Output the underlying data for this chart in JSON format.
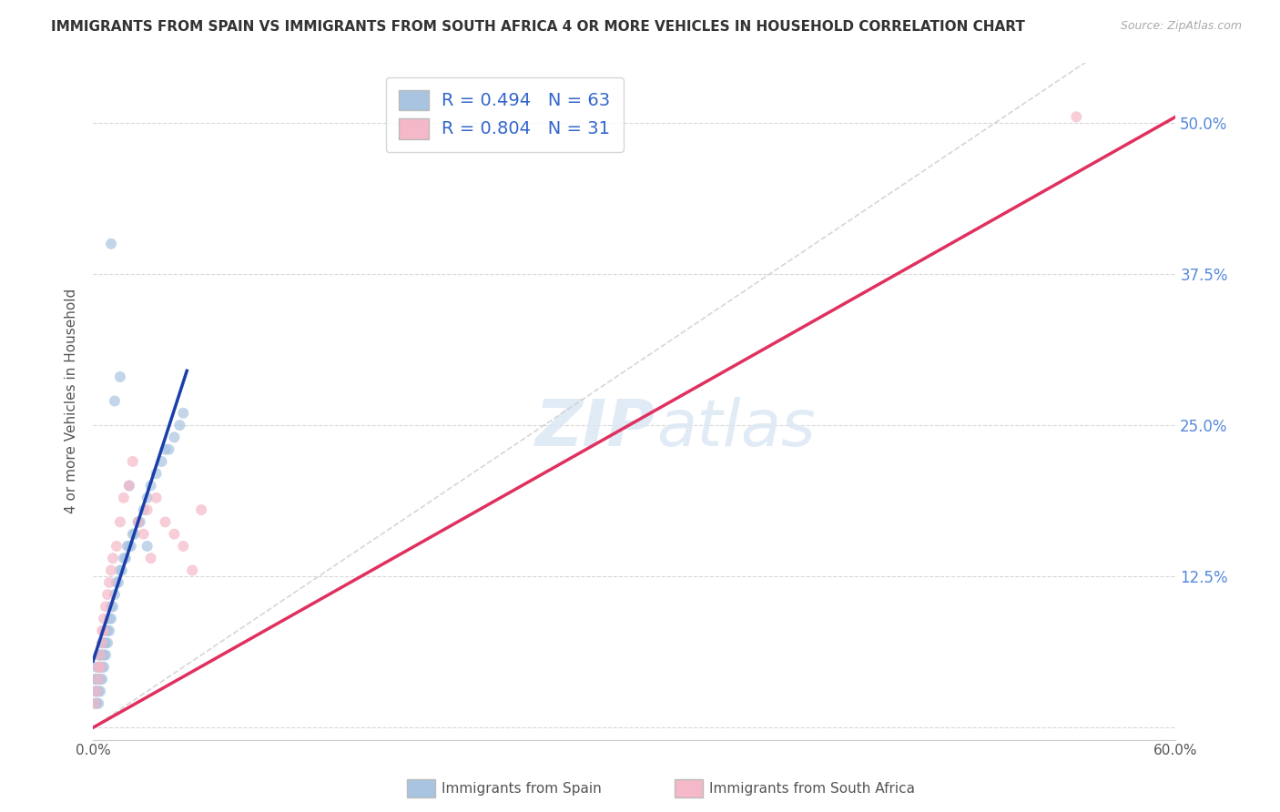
{
  "title": "IMMIGRANTS FROM SPAIN VS IMMIGRANTS FROM SOUTH AFRICA 4 OR MORE VEHICLES IN HOUSEHOLD CORRELATION CHART",
  "source": "Source: ZipAtlas.com",
  "ylabel": "4 or more Vehicles in Household",
  "legend_label1": "Immigrants from Spain",
  "legend_label2": "Immigrants from South Africa",
  "R1": 0.494,
  "N1": 63,
  "R2": 0.804,
  "N2": 31,
  "xlim": [
    0.0,
    0.6
  ],
  "ylim": [
    -0.01,
    0.55
  ],
  "xtick_vals": [
    0.0,
    0.1,
    0.2,
    0.3,
    0.4,
    0.5,
    0.6
  ],
  "xtick_labels": [
    "0.0%",
    "",
    "",
    "",
    "",
    "",
    "60.0%"
  ],
  "ytick_vals": [
    0.0,
    0.125,
    0.25,
    0.375,
    0.5
  ],
  "ytick_labels_right": [
    "",
    "12.5%",
    "25.0%",
    "37.5%",
    "50.0%"
  ],
  "color_spain": "#a8c4e0",
  "color_south_africa": "#f4b8c8",
  "line_color_spain": "#1a3faa",
  "line_color_south_africa": "#e03060",
  "diagonal_color": "#cccccc",
  "watermark_zip": "ZIP",
  "watermark_atlas": "atlas",
  "background_color": "#ffffff",
  "grid_color": "#d8d8d8",
  "scatter_size": 75,
  "scatter_alpha": 0.7,
  "spain_x": [
    0.001,
    0.001,
    0.001,
    0.002,
    0.002,
    0.002,
    0.002,
    0.003,
    0.003,
    0.003,
    0.003,
    0.003,
    0.004,
    0.004,
    0.004,
    0.004,
    0.005,
    0.005,
    0.005,
    0.005,
    0.006,
    0.006,
    0.006,
    0.007,
    0.007,
    0.007,
    0.008,
    0.008,
    0.009,
    0.009,
    0.01,
    0.01,
    0.011,
    0.012,
    0.013,
    0.014,
    0.015,
    0.016,
    0.017,
    0.018,
    0.019,
    0.02,
    0.021,
    0.022,
    0.023,
    0.025,
    0.026,
    0.028,
    0.03,
    0.032,
    0.035,
    0.038,
    0.04,
    0.042,
    0.045,
    0.048,
    0.05,
    0.01,
    0.012,
    0.015,
    0.02,
    0.025,
    0.03
  ],
  "spain_y": [
    0.02,
    0.03,
    0.04,
    0.02,
    0.03,
    0.04,
    0.05,
    0.02,
    0.03,
    0.04,
    0.05,
    0.06,
    0.03,
    0.04,
    0.05,
    0.06,
    0.04,
    0.05,
    0.06,
    0.07,
    0.05,
    0.06,
    0.07,
    0.06,
    0.07,
    0.08,
    0.07,
    0.08,
    0.08,
    0.09,
    0.09,
    0.1,
    0.1,
    0.11,
    0.12,
    0.12,
    0.13,
    0.13,
    0.14,
    0.14,
    0.15,
    0.15,
    0.15,
    0.16,
    0.16,
    0.17,
    0.17,
    0.18,
    0.19,
    0.2,
    0.21,
    0.22,
    0.23,
    0.23,
    0.24,
    0.25,
    0.26,
    0.4,
    0.27,
    0.29,
    0.2,
    0.17,
    0.15
  ],
  "sa_x": [
    0.001,
    0.002,
    0.003,
    0.003,
    0.004,
    0.004,
    0.005,
    0.005,
    0.006,
    0.006,
    0.007,
    0.008,
    0.009,
    0.01,
    0.011,
    0.013,
    0.015,
    0.017,
    0.02,
    0.022,
    0.025,
    0.028,
    0.03,
    0.032,
    0.035,
    0.04,
    0.045,
    0.05,
    0.055,
    0.06,
    0.545
  ],
  "sa_y": [
    0.02,
    0.03,
    0.04,
    0.05,
    0.05,
    0.06,
    0.07,
    0.08,
    0.08,
    0.09,
    0.1,
    0.11,
    0.12,
    0.13,
    0.14,
    0.15,
    0.17,
    0.19,
    0.2,
    0.22,
    0.17,
    0.16,
    0.18,
    0.14,
    0.19,
    0.17,
    0.16,
    0.15,
    0.13,
    0.18,
    0.505
  ],
  "spain_line_x": [
    0.0,
    0.052
  ],
  "spain_line_y": [
    0.055,
    0.295
  ],
  "sa_line_x": [
    0.0,
    0.6
  ],
  "sa_line_y": [
    0.0,
    0.505
  ]
}
